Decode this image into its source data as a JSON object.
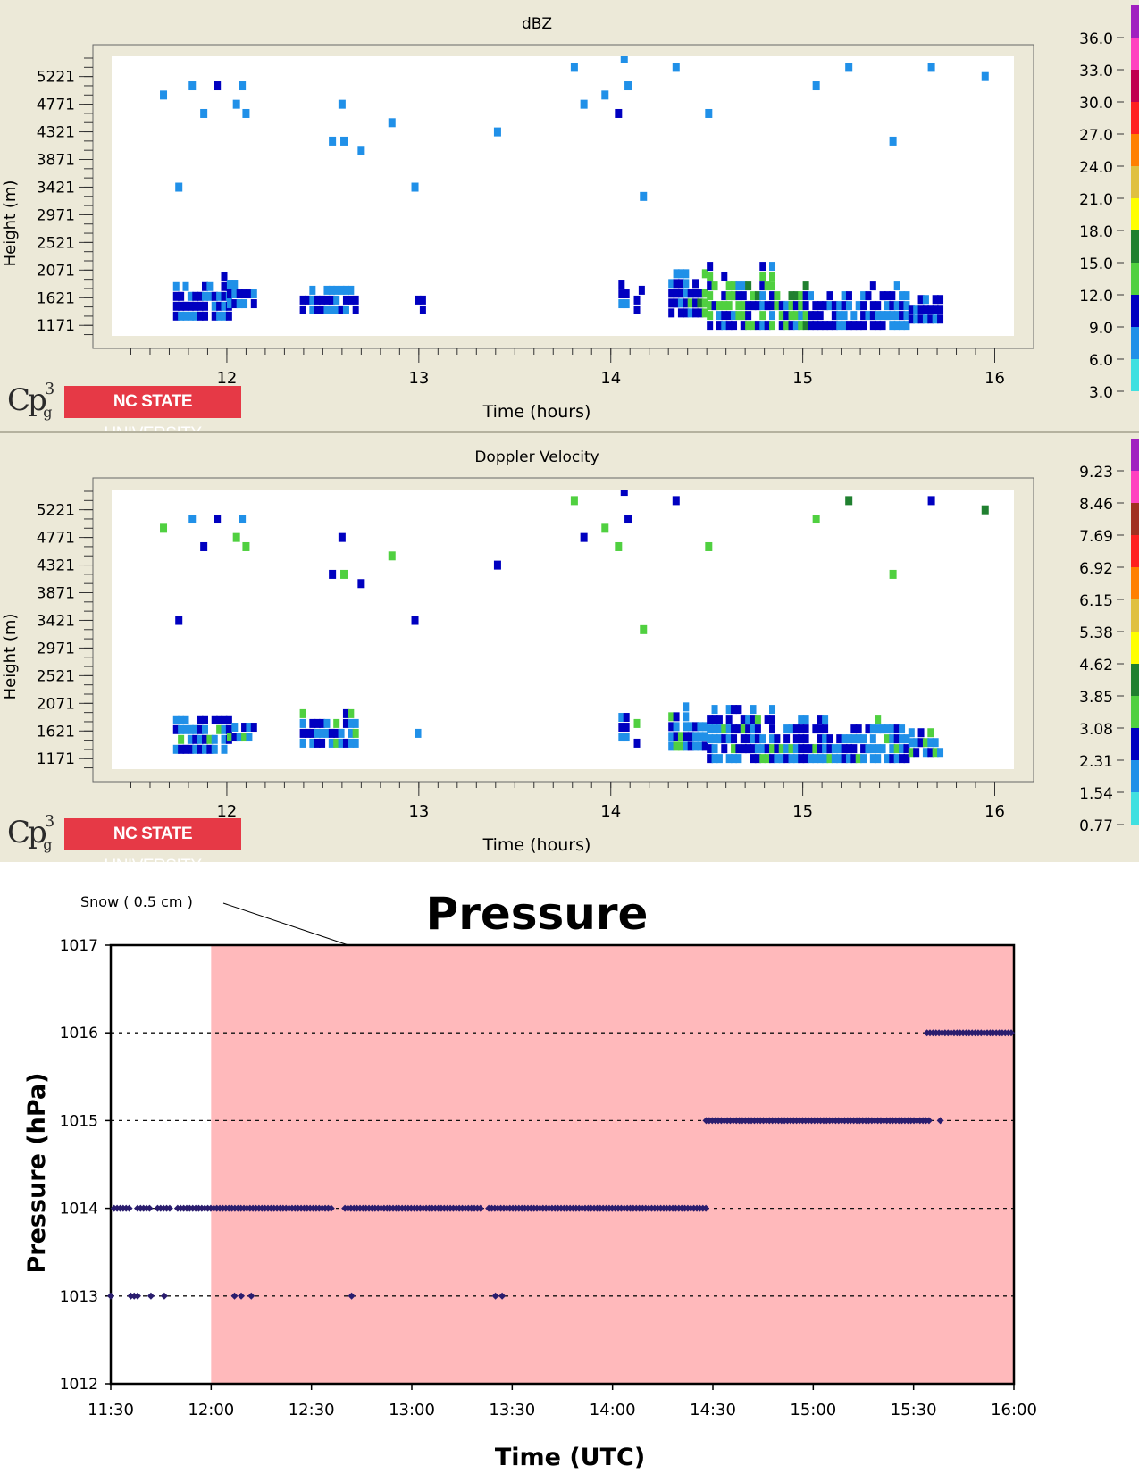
{
  "logo": {
    "cp_text": "Cp",
    "cp_sup": "3",
    "cp_sub": "g",
    "badge_bold": "NC STATE",
    "badge_rest": " UNIVERSITY"
  },
  "chart_data": [
    {
      "type": "heatmap",
      "title": "dBZ",
      "xlabel": "Time (hours)",
      "ylabel": "Height (m)",
      "x_ticks": [
        12,
        13,
        14,
        15,
        16
      ],
      "xlim": [
        11.4,
        16.1
      ],
      "y_ticks": [
        5221,
        4771,
        4321,
        3871,
        3421,
        2971,
        2521,
        2071,
        1621,
        1171
      ],
      "ylim": [
        1000,
        5550
      ],
      "colorbar": {
        "labels": [
          "36.0",
          "33.0",
          "30.0",
          "27.0",
          "24.0",
          "21.0",
          "18.0",
          "15.0",
          "12.0",
          "9.0",
          "6.0",
          "3.0"
        ],
        "colors": [
          "#a020c0",
          "#ff40c0",
          "#c00050",
          "#ff2020",
          "#ff8000",
          "#e0c040",
          "#ffff00",
          "#208030",
          "#50d040",
          "#0000c0",
          "#2090e8",
          "#40e0e0"
        ]
      },
      "sparse_echoes": [
        {
          "t": 11.67,
          "h": 4920,
          "c": "#2090e8"
        },
        {
          "t": 11.75,
          "h": 3420,
          "c": "#2090e8"
        },
        {
          "t": 11.82,
          "h": 5070,
          "c": "#2090e8"
        },
        {
          "t": 11.88,
          "h": 4620,
          "c": "#2090e8"
        },
        {
          "t": 11.95,
          "h": 5070,
          "c": "#0000c0"
        },
        {
          "t": 12.05,
          "h": 4770,
          "c": "#2090e8"
        },
        {
          "t": 12.08,
          "h": 5070,
          "c": "#2090e8"
        },
        {
          "t": 12.1,
          "h": 4620,
          "c": "#2090e8"
        },
        {
          "t": 12.6,
          "h": 4770,
          "c": "#2090e8"
        },
        {
          "t": 12.55,
          "h": 4170,
          "c": "#2090e8"
        },
        {
          "t": 12.61,
          "h": 4170,
          "c": "#2090e8"
        },
        {
          "t": 12.7,
          "h": 4020,
          "c": "#2090e8"
        },
        {
          "t": 12.86,
          "h": 4470,
          "c": "#2090e8"
        },
        {
          "t": 12.98,
          "h": 3420,
          "c": "#2090e8"
        },
        {
          "t": 13.41,
          "h": 4320,
          "c": "#2090e8"
        },
        {
          "t": 13.81,
          "h": 5370,
          "c": "#2090e8"
        },
        {
          "t": 13.86,
          "h": 4770,
          "c": "#2090e8"
        },
        {
          "t": 13.97,
          "h": 4920,
          "c": "#2090e8"
        },
        {
          "t": 14.04,
          "h": 4620,
          "c": "#0000c0"
        },
        {
          "t": 14.07,
          "h": 5520,
          "c": "#2090e8"
        },
        {
          "t": 14.09,
          "h": 5070,
          "c": "#2090e8"
        },
        {
          "t": 14.17,
          "h": 3270,
          "c": "#2090e8"
        },
        {
          "t": 14.34,
          "h": 5370,
          "c": "#2090e8"
        },
        {
          "t": 14.51,
          "h": 4620,
          "c": "#2090e8"
        },
        {
          "t": 15.07,
          "h": 5070,
          "c": "#2090e8"
        },
        {
          "t": 15.24,
          "h": 5370,
          "c": "#2090e8"
        },
        {
          "t": 15.47,
          "h": 4170,
          "c": "#2090e8"
        },
        {
          "t": 15.67,
          "h": 5370,
          "c": "#2090e8"
        },
        {
          "t": 15.95,
          "h": 5220,
          "c": "#2090e8"
        }
      ],
      "echo_columns": [
        {
          "t0": 11.72,
          "t1": 12.0,
          "h0": 1250,
          "h1": 1900,
          "c": "#2090e8"
        },
        {
          "t0": 12.0,
          "t1": 12.15,
          "h0": 1450,
          "h1": 1800,
          "c": "#2090e8"
        },
        {
          "t0": 12.38,
          "t1": 12.68,
          "h0": 1350,
          "h1": 1850,
          "c": "#2090e8"
        },
        {
          "t0": 12.98,
          "t1": 13.01,
          "h0": 1350,
          "h1": 1700,
          "c": "#2090e8"
        },
        {
          "t0": 14.04,
          "t1": 14.07,
          "h0": 1450,
          "h1": 1850,
          "c": "#2090e8"
        },
        {
          "t0": 14.12,
          "t1": 14.16,
          "h0": 1350,
          "h1": 1850,
          "c": "#2090e8"
        },
        {
          "t0": 14.3,
          "t1": 14.5,
          "h0": 1300,
          "h1": 2050,
          "c": "#2090e8"
        },
        {
          "t0": 14.5,
          "t1": 14.85,
          "h0": 1100,
          "h1": 2100,
          "c": "#2090e8"
        },
        {
          "t0": 14.85,
          "t1": 15.25,
          "h0": 1100,
          "h1": 1800,
          "c": "#2090e8"
        },
        {
          "t0": 15.25,
          "t1": 15.55,
          "h0": 1100,
          "h1": 1800,
          "c": "#2090e8"
        },
        {
          "t0": 15.55,
          "t1": 15.72,
          "h0": 1200,
          "h1": 1650,
          "c": "#2090e8"
        }
      ]
    },
    {
      "type": "heatmap",
      "title": "Doppler Velocity",
      "xlabel": "Time (hours)",
      "ylabel": "Height (m)",
      "x_ticks": [
        12,
        13,
        14,
        15,
        16
      ],
      "xlim": [
        11.4,
        16.1
      ],
      "y_ticks": [
        5221,
        4771,
        4321,
        3871,
        3421,
        2971,
        2521,
        2071,
        1621,
        1171
      ],
      "ylim": [
        1000,
        5550
      ],
      "colorbar": {
        "labels": [
          "9.23",
          "8.46",
          "7.69",
          "6.92",
          "6.15",
          "5.38",
          "4.62",
          "3.85",
          "3.08",
          "2.31",
          "1.54",
          "0.77"
        ],
        "colors": [
          "#a020c0",
          "#ff40c0",
          "#a03020",
          "#ff2020",
          "#ff8000",
          "#e0c040",
          "#ffff00",
          "#208030",
          "#50d040",
          "#0000c0",
          "#2090e8",
          "#40e0e0"
        ]
      },
      "sparse_echoes": [
        {
          "t": 11.67,
          "h": 4920,
          "c": "#50d040"
        },
        {
          "t": 11.75,
          "h": 3420,
          "c": "#0000c0"
        },
        {
          "t": 11.82,
          "h": 5070,
          "c": "#2090e8"
        },
        {
          "t": 11.88,
          "h": 4620,
          "c": "#0000c0"
        },
        {
          "t": 11.95,
          "h": 5070,
          "c": "#0000c0"
        },
        {
          "t": 12.05,
          "h": 4770,
          "c": "#50d040"
        },
        {
          "t": 12.08,
          "h": 5070,
          "c": "#2090e8"
        },
        {
          "t": 12.1,
          "h": 4620,
          "c": "#50d040"
        },
        {
          "t": 12.6,
          "h": 4770,
          "c": "#0000c0"
        },
        {
          "t": 12.55,
          "h": 4170,
          "c": "#0000c0"
        },
        {
          "t": 12.61,
          "h": 4170,
          "c": "#50d040"
        },
        {
          "t": 12.7,
          "h": 4020,
          "c": "#0000c0"
        },
        {
          "t": 12.86,
          "h": 4470,
          "c": "#50d040"
        },
        {
          "t": 12.98,
          "h": 3420,
          "c": "#0000c0"
        },
        {
          "t": 13.41,
          "h": 4320,
          "c": "#0000c0"
        },
        {
          "t": 13.81,
          "h": 5370,
          "c": "#50d040"
        },
        {
          "t": 13.86,
          "h": 4770,
          "c": "#0000c0"
        },
        {
          "t": 13.97,
          "h": 4920,
          "c": "#50d040"
        },
        {
          "t": 14.04,
          "h": 4620,
          "c": "#50d040"
        },
        {
          "t": 14.07,
          "h": 5520,
          "c": "#0000c0"
        },
        {
          "t": 14.09,
          "h": 5070,
          "c": "#0000c0"
        },
        {
          "t": 14.17,
          "h": 3270,
          "c": "#50d040"
        },
        {
          "t": 14.34,
          "h": 5370,
          "c": "#0000c0"
        },
        {
          "t": 14.51,
          "h": 4620,
          "c": "#50d040"
        },
        {
          "t": 15.07,
          "h": 5070,
          "c": "#50d040"
        },
        {
          "t": 15.24,
          "h": 5370,
          "c": "#208030"
        },
        {
          "t": 15.47,
          "h": 4170,
          "c": "#50d040"
        },
        {
          "t": 15.67,
          "h": 5370,
          "c": "#0000c0"
        },
        {
          "t": 15.95,
          "h": 5220,
          "c": "#208030"
        }
      ],
      "echo_columns": [
        {
          "t0": 11.72,
          "t1": 12.0,
          "h0": 1250,
          "h1": 1900,
          "c": "#2090e8"
        },
        {
          "t0": 12.0,
          "t1": 12.15,
          "h0": 1450,
          "h1": 1800,
          "c": "#2090e8"
        },
        {
          "t0": 12.38,
          "t1": 12.68,
          "h0": 1350,
          "h1": 1850,
          "c": "#2090e8"
        },
        {
          "t0": 12.98,
          "t1": 13.01,
          "h0": 1350,
          "h1": 1700,
          "c": "#2090e8"
        },
        {
          "t0": 14.04,
          "t1": 14.07,
          "h0": 1450,
          "h1": 1850,
          "c": "#2090e8"
        },
        {
          "t0": 14.12,
          "t1": 14.16,
          "h0": 1350,
          "h1": 1850,
          "c": "#2090e8"
        },
        {
          "t0": 14.3,
          "t1": 14.5,
          "h0": 1300,
          "h1": 2050,
          "c": "#2090e8"
        },
        {
          "t0": 14.5,
          "t1": 14.85,
          "h0": 1100,
          "h1": 2100,
          "c": "#2090e8"
        },
        {
          "t0": 14.85,
          "t1": 15.25,
          "h0": 1100,
          "h1": 1800,
          "c": "#2090e8"
        },
        {
          "t0": 15.25,
          "t1": 15.55,
          "h0": 1100,
          "h1": 1800,
          "c": "#2090e8"
        },
        {
          "t0": 15.55,
          "t1": 15.72,
          "h0": 1200,
          "h1": 1650,
          "c": "#2090e8"
        }
      ]
    },
    {
      "type": "scatter",
      "title": "Pressure",
      "xlabel": "Time (UTC)",
      "ylabel": "Pressure (hPa)",
      "x_ticks": [
        "11:30",
        "12:00",
        "12:30",
        "13:00",
        "13:30",
        "14:00",
        "14:30",
        "15:00",
        "15:30",
        "16:00"
      ],
      "xlim": [
        690,
        960
      ],
      "ylim": [
        1012,
        1017
      ],
      "y_ticks": [
        1012,
        1013,
        1014,
        1015,
        1016,
        1017
      ],
      "grid": "dashed horizontal at 1013-1016",
      "annotation": {
        "text": "Snow ( 0.5 cm )",
        "shaded_from": 720,
        "shaded_to": 960,
        "shade_color": "#ffb9bb"
      },
      "marker_color": "#2a1d6e",
      "series": [
        {
          "runs": [
            {
              "p": 1014,
              "from": 691,
              "to": 696
            },
            {
              "p": 1014,
              "from": 698,
              "to": 702
            },
            {
              "p": 1014,
              "from": 704,
              "to": 708
            },
            {
              "p": 1014,
              "from": 710,
              "to": 756
            },
            {
              "p": 1014,
              "from": 760,
              "to": 801
            },
            {
              "p": 1014,
              "from": 803,
              "to": 848
            },
            {
              "p": 1014,
              "from": 849,
              "to": 868
            },
            {
              "p": 1015,
              "from": 868,
              "to": 935
            },
            {
              "p": 1016,
              "from": 934,
              "to": 960
            }
          ],
          "points": [
            {
              "t": 690,
              "p": 1013
            },
            {
              "t": 696,
              "p": 1013
            },
            {
              "t": 697,
              "p": 1013
            },
            {
              "t": 698,
              "p": 1013
            },
            {
              "t": 702,
              "p": 1013
            },
            {
              "t": 706,
              "p": 1013
            },
            {
              "t": 727,
              "p": 1013
            },
            {
              "t": 729,
              "p": 1013
            },
            {
              "t": 732,
              "p": 1013
            },
            {
              "t": 762,
              "p": 1013
            },
            {
              "t": 805,
              "p": 1013
            },
            {
              "t": 807,
              "p": 1013
            },
            {
              "t": 938,
              "p": 1015
            }
          ]
        }
      ]
    }
  ]
}
